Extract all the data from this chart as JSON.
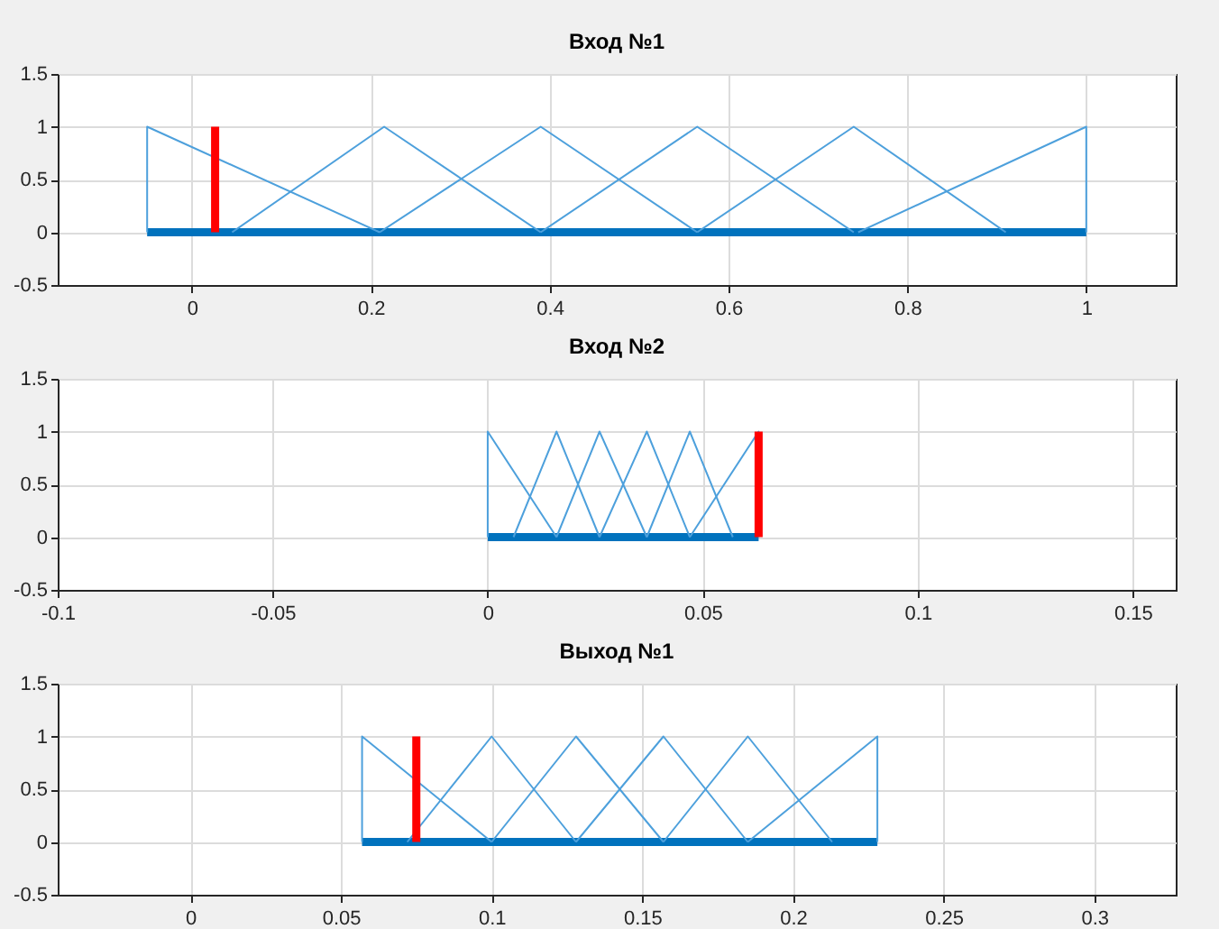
{
  "chart_data": [
    {
      "type": "line",
      "title": "Вход №1",
      "xlim": [
        -0.15,
        1.1
      ],
      "xticks": [
        0,
        0.2,
        0.4,
        0.6,
        0.8,
        1
      ],
      "ylim": [
        -0.5,
        1.5
      ],
      "yticks": [
        -0.5,
        0,
        0.5,
        1,
        1.5
      ],
      "grid": true,
      "series": [
        {
          "color": "#0072bd",
          "x": [
            -0.05,
            1
          ],
          "values": [
            0,
            0
          ]
        },
        {
          "color": "#4da0dc",
          "x": [
            -0.05,
            -0.05,
            0.21
          ],
          "values": [
            0,
            1,
            0
          ]
        },
        {
          "color": "#4da0dc",
          "x": [
            0.045,
            0.215,
            0.39
          ],
          "values": [
            0,
            1,
            0
          ]
        },
        {
          "color": "#4da0dc",
          "x": [
            0.21,
            0.39,
            0.565
          ],
          "values": [
            0,
            1,
            0
          ]
        },
        {
          "color": "#4da0dc",
          "x": [
            0.39,
            0.565,
            0.74
          ],
          "values": [
            0,
            1,
            0
          ]
        },
        {
          "color": "#4da0dc",
          "x": [
            0.565,
            0.74,
            0.91
          ],
          "values": [
            0,
            1,
            0
          ]
        },
        {
          "color": "#4da0dc",
          "x": [
            0.745,
            1,
            1
          ],
          "values": [
            0,
            1,
            0
          ]
        },
        {
          "color": "#ff0000",
          "x": [
            0.026,
            0.026
          ],
          "values": [
            0,
            1
          ]
        }
      ]
    },
    {
      "type": "line",
      "title": "Вход №2",
      "xlim": [
        -0.1,
        0.16
      ],
      "xticks": [
        -0.1,
        -0.05,
        0,
        0.05,
        0.1,
        0.15
      ],
      "ylim": [
        -0.5,
        1.5
      ],
      "yticks": [
        -0.5,
        0,
        0.5,
        1,
        1.5
      ],
      "grid": true,
      "series": [
        {
          "color": "#0072bd",
          "x": [
            0,
            0.063
          ],
          "values": [
            0,
            0
          ]
        },
        {
          "color": "#4da0dc",
          "x": [
            0,
            0,
            0.016
          ],
          "values": [
            0,
            1,
            0
          ]
        },
        {
          "color": "#4da0dc",
          "x": [
            0.006,
            0.016,
            0.026
          ],
          "values": [
            0,
            1,
            0
          ]
        },
        {
          "color": "#4da0dc",
          "x": [
            0.016,
            0.026,
            0.037
          ],
          "values": [
            0,
            1,
            0
          ]
        },
        {
          "color": "#4da0dc",
          "x": [
            0.026,
            0.037,
            0.047
          ],
          "values": [
            0,
            1,
            0
          ]
        },
        {
          "color": "#4da0dc",
          "x": [
            0.037,
            0.047,
            0.057
          ],
          "values": [
            0,
            1,
            0
          ]
        },
        {
          "color": "#4da0dc",
          "x": [
            0.047,
            0.063,
            0.063
          ],
          "values": [
            0,
            1,
            0
          ]
        },
        {
          "color": "#ff0000",
          "x": [
            0.063,
            0.063
          ],
          "values": [
            0,
            1
          ]
        }
      ]
    },
    {
      "type": "line",
      "title": "Выход №1",
      "xlim": [
        -0.044,
        0.327
      ],
      "xticks": [
        0,
        0.05,
        0.1,
        0.15,
        0.2,
        0.25,
        0.3
      ],
      "ylim": [
        -0.5,
        1.5
      ],
      "yticks": [
        -0.5,
        0,
        0.5,
        1,
        1.5
      ],
      "grid": true,
      "series": [
        {
          "color": "#0072bd",
          "x": [
            0.057,
            0.228
          ],
          "values": [
            0,
            0
          ]
        },
        {
          "color": "#4da0dc",
          "x": [
            0.057,
            0.057,
            0.1
          ],
          "values": [
            0,
            1,
            0
          ]
        },
        {
          "color": "#4da0dc",
          "x": [
            0.072,
            0.1,
            0.128
          ],
          "values": [
            0,
            1,
            0
          ]
        },
        {
          "color": "#4da0dc",
          "x": [
            0.1,
            0.128,
            0.157
          ],
          "values": [
            0,
            1,
            0
          ]
        },
        {
          "color": "#4da0dc",
          "x": [
            0.128,
            0.157,
            0.185
          ],
          "values": [
            0,
            1,
            0
          ]
        },
        {
          "color": "#4da0dc",
          "x": [
            0.157,
            0.185,
            0.213
          ],
          "values": [
            0,
            1,
            0
          ]
        },
        {
          "color": "#4da0dc",
          "x": [
            0.185,
            0.228,
            0.228
          ],
          "values": [
            0,
            1,
            0
          ]
        },
        {
          "color": "#ff0000",
          "x": [
            0.075,
            0.075
          ],
          "values": [
            0,
            1
          ]
        }
      ]
    }
  ]
}
